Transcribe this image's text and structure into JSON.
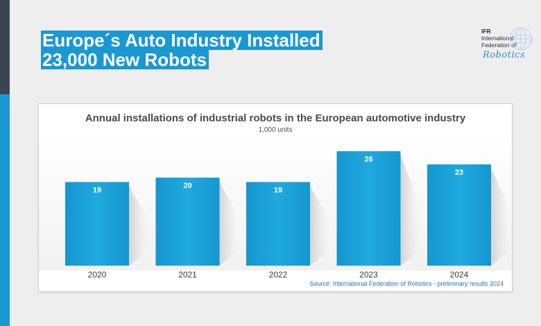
{
  "headline": {
    "line1": "Europe´s Auto Industry Installed",
    "line2": "23,000 New Robots"
  },
  "logo": {
    "line1": "IFR",
    "line2": "International",
    "line3": "Federation of",
    "script": "Robotics"
  },
  "colors": {
    "accent": "#1a98d2",
    "bar": "#1aa3d8",
    "sidebar_dark": "#3a4452"
  },
  "chart_data": {
    "type": "bar",
    "title": "Annual installations of industrial robots in the European automotive industry",
    "subtitle": "1,000 units",
    "categories": [
      "2020",
      "2021",
      "2022",
      "2023",
      "2024"
    ],
    "values": [
      19,
      20,
      19,
      26,
      23
    ],
    "data_labels": [
      "19",
      "20",
      "19",
      "26",
      "23"
    ],
    "ylim": [
      0,
      26
    ],
    "grid": false,
    "legend": "none",
    "source": "Source: International Federation of Robotics - preliminary results 2024"
  }
}
